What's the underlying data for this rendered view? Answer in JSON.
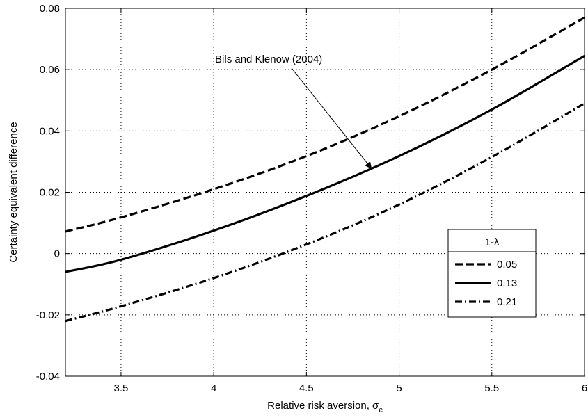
{
  "chart_data": {
    "type": "line",
    "title": "",
    "xlabel": "Relative risk aversion, σ",
    "xlabel_subscript": "c",
    "ylabel": "Certainty equivalent difference",
    "xlim": [
      3.2,
      6
    ],
    "ylim": [
      -0.04,
      0.08
    ],
    "xticks": [
      3.5,
      4,
      4.5,
      5,
      5.5,
      6
    ],
    "xtick_labels": [
      "3.5",
      "4",
      "4.5",
      "5",
      "5.5",
      "6"
    ],
    "yticks": [
      -0.04,
      -0.02,
      0,
      0.02,
      0.04,
      0.06,
      0.08
    ],
    "ytick_labels": [
      "-0.04",
      "-0.02",
      "0",
      "0.02",
      "0.04",
      "0.06",
      "0.08"
    ],
    "grid": true,
    "legend": {
      "title": "1-λ",
      "placement": "lower-right"
    },
    "series": [
      {
        "name": "0.05",
        "style": "dashed",
        "x": [
          3.2,
          3.5,
          4.0,
          4.5,
          5.0,
          5.5,
          6.0
        ],
        "y": [
          0.0072,
          0.0118,
          0.021,
          0.0318,
          0.0448,
          0.06,
          0.077
        ]
      },
      {
        "name": "0.13",
        "style": "solid",
        "x": [
          3.2,
          3.5,
          4.0,
          4.5,
          5.0,
          5.5,
          6.0
        ],
        "y": [
          -0.006,
          -0.002,
          0.0075,
          0.0188,
          0.0318,
          0.047,
          0.0645
        ]
      },
      {
        "name": "0.21",
        "style": "dashdot",
        "x": [
          3.2,
          3.5,
          4.0,
          4.5,
          5.0,
          5.5,
          6.0
        ],
        "y": [
          -0.022,
          -0.0172,
          -0.008,
          0.003,
          0.016,
          0.0315,
          0.049
        ]
      }
    ],
    "annotation": {
      "text": "Bils and Klenow (2004)",
      "point": [
        4.85,
        0.0278
      ],
      "text_anchor": [
        4.42,
        0.0605
      ]
    }
  }
}
